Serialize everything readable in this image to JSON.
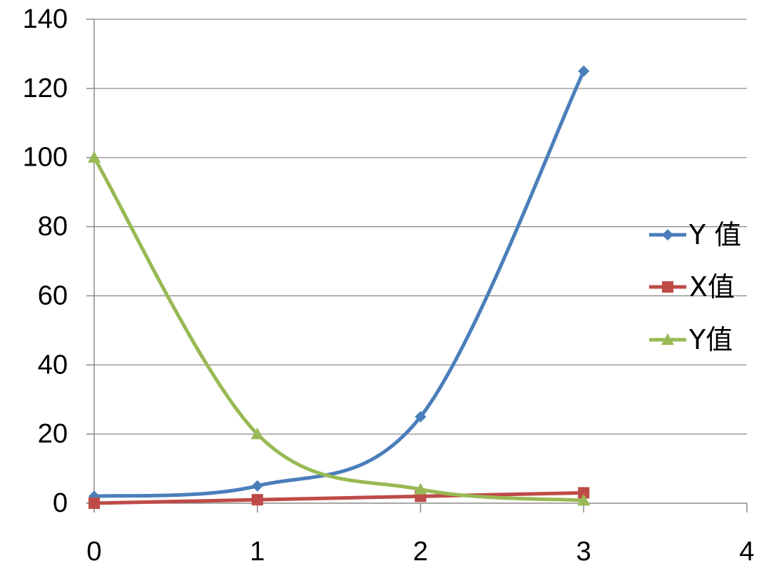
{
  "chart_data": {
    "type": "scatter",
    "title": "",
    "xlabel": "",
    "ylabel": "",
    "xlim": [
      0,
      4
    ],
    "ylim": [
      0,
      140
    ],
    "x_ticks": [
      0,
      1,
      2,
      3,
      4
    ],
    "y_ticks": [
      0,
      20,
      40,
      60,
      80,
      100,
      120,
      140
    ],
    "x_tick_labels": [
      "0",
      "1",
      "2",
      "3",
      "4"
    ],
    "y_tick_labels": [
      "0",
      "20",
      "40",
      "60",
      "80",
      "100",
      "120",
      "140"
    ],
    "grid": "horizontal",
    "legend_position": "right",
    "smooth_lines": true,
    "series": [
      {
        "name": "Y 值",
        "color": "#4a7ebb",
        "marker": "diamond",
        "x": [
          0,
          1,
          2,
          3
        ],
        "y": [
          2,
          5,
          25,
          125
        ]
      },
      {
        "name": "X值",
        "color": "#be4b48",
        "marker": "square",
        "x": [
          0,
          1,
          2,
          3
        ],
        "y": [
          0,
          1,
          2,
          3
        ]
      },
      {
        "name": "Y值",
        "color": "#98b954",
        "marker": "triangle",
        "x": [
          0,
          1,
          2,
          3
        ],
        "y": [
          100,
          20,
          4,
          0.8
        ]
      }
    ]
  }
}
